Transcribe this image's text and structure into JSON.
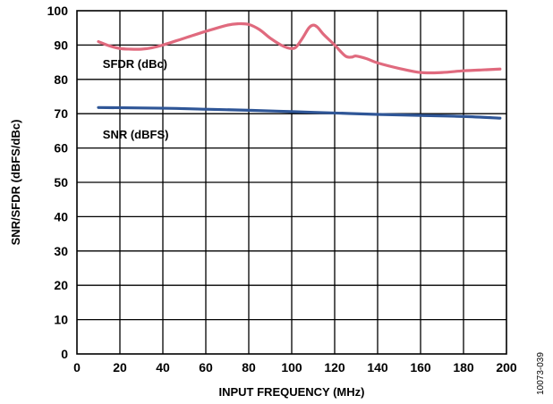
{
  "chart_data": {
    "type": "line",
    "xlabel": "INPUT FREQUENCY (MHz)",
    "ylabel": "SNR/SFDR (dBFS/dBc)",
    "xlim": [
      0,
      200
    ],
    "ylim": [
      0,
      100
    ],
    "x_ticks": [
      0,
      20,
      40,
      60,
      80,
      100,
      120,
      140,
      160,
      180,
      200
    ],
    "y_ticks": [
      0,
      10,
      20,
      30,
      40,
      50,
      60,
      70,
      80,
      90,
      100
    ],
    "grid": true,
    "figure_id": "10073-039",
    "series": [
      {
        "name": "SFDR (dBc)",
        "color": "#e06a7e",
        "points": [
          [
            10,
            91.0
          ],
          [
            15,
            89.8
          ],
          [
            20,
            89.0
          ],
          [
            25,
            88.8
          ],
          [
            30,
            88.8
          ],
          [
            35,
            89.2
          ],
          [
            40,
            90.0
          ],
          [
            50,
            92.0
          ],
          [
            60,
            94.0
          ],
          [
            70,
            95.8
          ],
          [
            75,
            96.2
          ],
          [
            80,
            96.0
          ],
          [
            85,
            94.5
          ],
          [
            90,
            92.0
          ],
          [
            95,
            90.0
          ],
          [
            98,
            89.2
          ],
          [
            100,
            89.0
          ],
          [
            102,
            89.4
          ],
          [
            105,
            92.0
          ],
          [
            108,
            95.0
          ],
          [
            110,
            95.8
          ],
          [
            112,
            95.2
          ],
          [
            115,
            93.0
          ],
          [
            120,
            90.0
          ],
          [
            125,
            86.8
          ],
          [
            128,
            86.5
          ],
          [
            130,
            86.8
          ],
          [
            135,
            86.0
          ],
          [
            140,
            84.8
          ],
          [
            150,
            83.2
          ],
          [
            160,
            82.0
          ],
          [
            170,
            82.0
          ],
          [
            180,
            82.5
          ],
          [
            190,
            82.8
          ],
          [
            197,
            83.0
          ]
        ]
      },
      {
        "name": "SNR (dBFS)",
        "color": "#2f5697",
        "points": [
          [
            10,
            71.8
          ],
          [
            40,
            71.6
          ],
          [
            60,
            71.3
          ],
          [
            80,
            71.0
          ],
          [
            100,
            70.6
          ],
          [
            120,
            70.2
          ],
          [
            140,
            69.8
          ],
          [
            160,
            69.5
          ],
          [
            180,
            69.2
          ],
          [
            197,
            68.7
          ]
        ]
      }
    ]
  }
}
